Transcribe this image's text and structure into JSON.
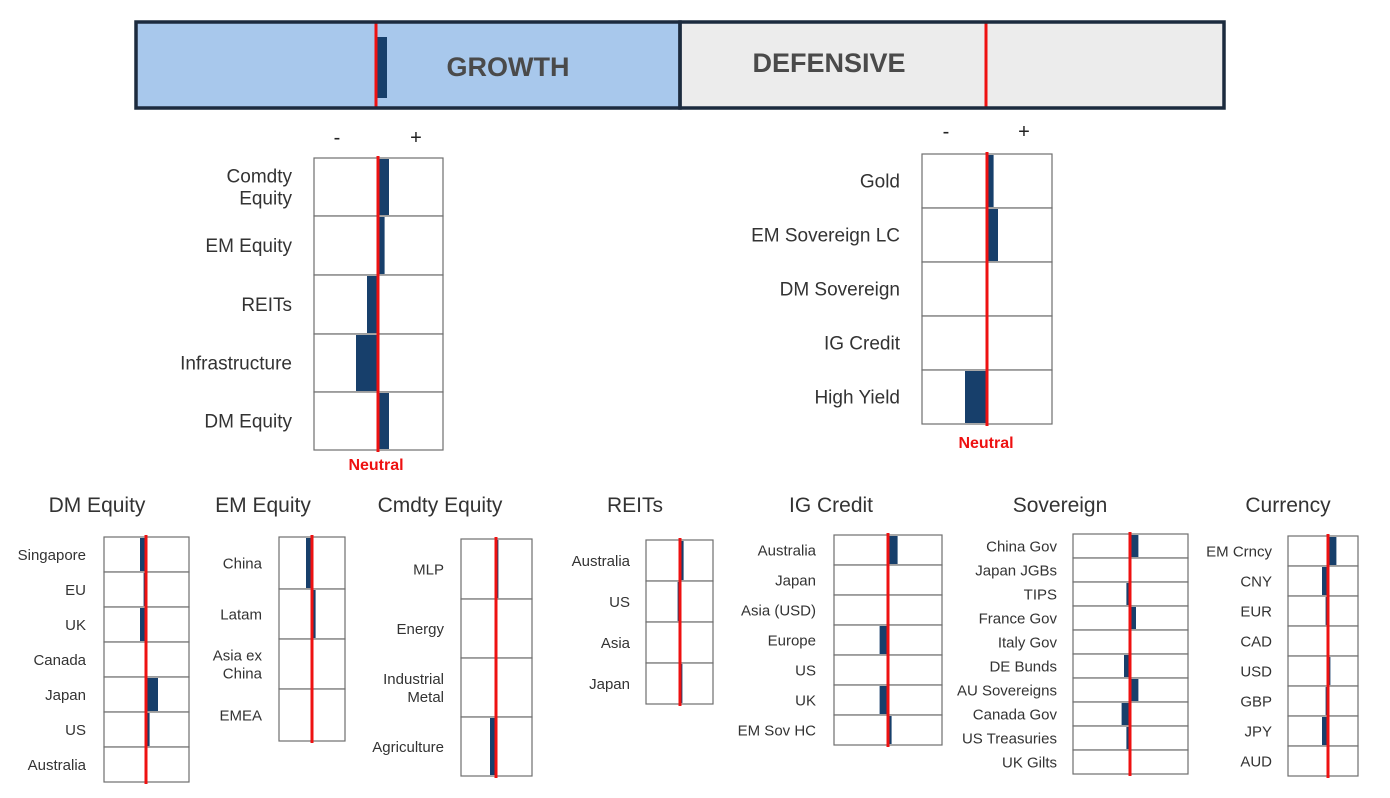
{
  "colors": {
    "bar": "#173f6b",
    "neutral_line": "#ee1111",
    "growth_fill": "#a8c8ec",
    "defensive_fill": "#ececec",
    "frame": "#1c2b3e",
    "box_border": "#6f6f6f"
  },
  "banner": {
    "growth_label": "GROWTH",
    "defensive_label": "DEFENSIVE",
    "growth_value": 0.5,
    "defensive_value": 0
  },
  "chart_data": [
    {
      "type": "bar",
      "panel": "growth",
      "neg_label": "-",
      "pos_label": "+",
      "neutral_label": "Neutral",
      "xlim": [
        -3,
        3
      ],
      "categories": [
        "Comdty Equity",
        "EM Equity",
        "REITs",
        "Infrastructure",
        "DM Equity"
      ],
      "values": [
        0.5,
        0.3,
        -0.5,
        -1,
        0.5
      ]
    },
    {
      "type": "bar",
      "panel": "defensive",
      "neg_label": "-",
      "pos_label": "+",
      "neutral_label": "Neutral",
      "xlim": [
        -3,
        3
      ],
      "categories": [
        "Gold",
        "EM Sovereign LC",
        "DM Sovereign",
        "IG Credit",
        "High Yield"
      ],
      "values": [
        0.3,
        0.5,
        0,
        0,
        -1
      ]
    },
    {
      "type": "bar",
      "title": "DM Equity",
      "xlim": [
        -3,
        3
      ],
      "categories": [
        "Singapore",
        "EU",
        "UK",
        "Canada",
        "Japan",
        "US",
        "Australia"
      ],
      "values": [
        -0.5,
        -0.2,
        -0.5,
        0,
        1,
        0.3,
        0
      ]
    },
    {
      "type": "bar",
      "title": "EM Equity",
      "xlim": [
        -3,
        3
      ],
      "categories": [
        "China",
        "Latam",
        "Asia ex China",
        "EMEA"
      ],
      "values": [
        -0.5,
        0.3,
        0.1,
        0
      ]
    },
    {
      "type": "bar",
      "title": "Cmdty Equity",
      "xlim": [
        -3,
        3
      ],
      "categories": [
        "MLP",
        "Energy",
        "Industrial Metal",
        "Agriculture"
      ],
      "values": [
        0.2,
        0.1,
        0,
        -0.5
      ]
    },
    {
      "type": "bar",
      "title": "REITs",
      "xlim": [
        -3,
        3
      ],
      "categories": [
        "Australia",
        "US",
        "Asia",
        "Japan"
      ],
      "values": [
        0.3,
        -0.2,
        -0.1,
        0.2
      ]
    },
    {
      "type": "bar",
      "title": "IG Credit",
      "xlim": [
        -3,
        3
      ],
      "categories": [
        "Australia",
        "Japan",
        "Asia (USD)",
        "Europe",
        "US",
        "UK",
        "EM Sov HC"
      ],
      "values": [
        0.8,
        0.1,
        0,
        -0.7,
        0.1,
        -0.7,
        0.3
      ]
    },
    {
      "type": "bar",
      "title": "Sovereign",
      "xlim": [
        -3,
        3
      ],
      "categories": [
        "China Gov",
        "Japan JGBs",
        "TIPS",
        "France Gov",
        "Italy Gov",
        "DE Bunds",
        "AU Sovereigns",
        "Canada Gov",
        "US Treasuries",
        "UK Gilts"
      ],
      "values": [
        0.7,
        -0.1,
        -0.3,
        0.5,
        0,
        -0.5,
        0.7,
        -0.7,
        -0.3,
        0
      ]
    },
    {
      "type": "bar",
      "title": "Currency",
      "xlim": [
        -3,
        3
      ],
      "categories": [
        "EM Crncy",
        "CNY",
        "EUR",
        "CAD",
        "USD",
        "GBP",
        "JPY",
        "AUD"
      ],
      "values": [
        0.7,
        -0.5,
        -0.2,
        0.1,
        0.2,
        -0.2,
        -0.5,
        0
      ]
    }
  ]
}
